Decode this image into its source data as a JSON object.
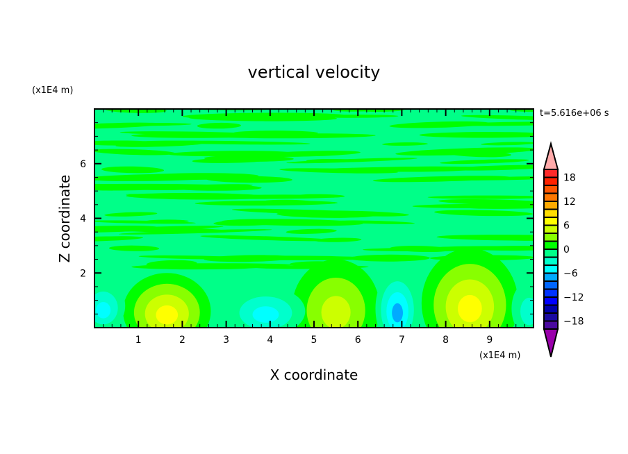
{
  "chart_data": {
    "type": "heatmap",
    "title": "vertical velocity",
    "xlabel": "X coordinate",
    "ylabel": "Z coordinate",
    "x_unit": "(x1E4 m)",
    "y_unit": "(x1E4 m)",
    "time_label": "t=5.616e+06 s",
    "xlim": [
      0,
      10
    ],
    "ylim": [
      0,
      8
    ],
    "xticks": [
      1,
      2,
      3,
      4,
      5,
      6,
      7,
      8,
      9
    ],
    "yticks": [
      2,
      4,
      6
    ],
    "colorbar": {
      "levels_min": -20,
      "levels_max": 20,
      "step": 2,
      "tick_labels": [
        18,
        12,
        6,
        0,
        -6,
        -12,
        -18
      ],
      "colors_top_to_bottom": [
        "#ff2a2a",
        "#ff2200",
        "#ff5500",
        "#ff7700",
        "#ffaa00",
        "#ffdd00",
        "#ffff00",
        "#ccff00",
        "#88ff00",
        "#00ff00",
        "#00ff88",
        "#00ffcc",
        "#00ffff",
        "#00aaff",
        "#0066ff",
        "#0033ff",
        "#0000ff",
        "#0000aa",
        "#1a0aa0",
        "#4b0aa0"
      ],
      "over_color": "#ffaaaa",
      "under_color": "#9900aa"
    },
    "features": [
      {
        "x": 1.65,
        "z": 0.6,
        "peak": 8,
        "rx": 1.0,
        "rz": 1.4
      },
      {
        "x": 5.5,
        "z": 0.7,
        "peak": 6,
        "rx": 1.0,
        "rz": 1.8
      },
      {
        "x": 8.55,
        "z": 0.9,
        "peak": 8,
        "rx": 1.1,
        "rz": 2.0
      },
      {
        "x": 0.2,
        "z": 0.8,
        "peak": -5,
        "rx": 0.5,
        "rz": 0.9
      },
      {
        "x": 3.9,
        "z": 0.6,
        "peak": -5,
        "rx": 0.9,
        "rz": 0.9
      },
      {
        "x": 6.9,
        "z": 0.7,
        "peak": -7,
        "rx": 0.5,
        "rz": 1.4
      },
      {
        "x": 9.9,
        "z": 0.7,
        "peak": -4,
        "rx": 0.4,
        "rz": 1.0
      }
    ]
  }
}
